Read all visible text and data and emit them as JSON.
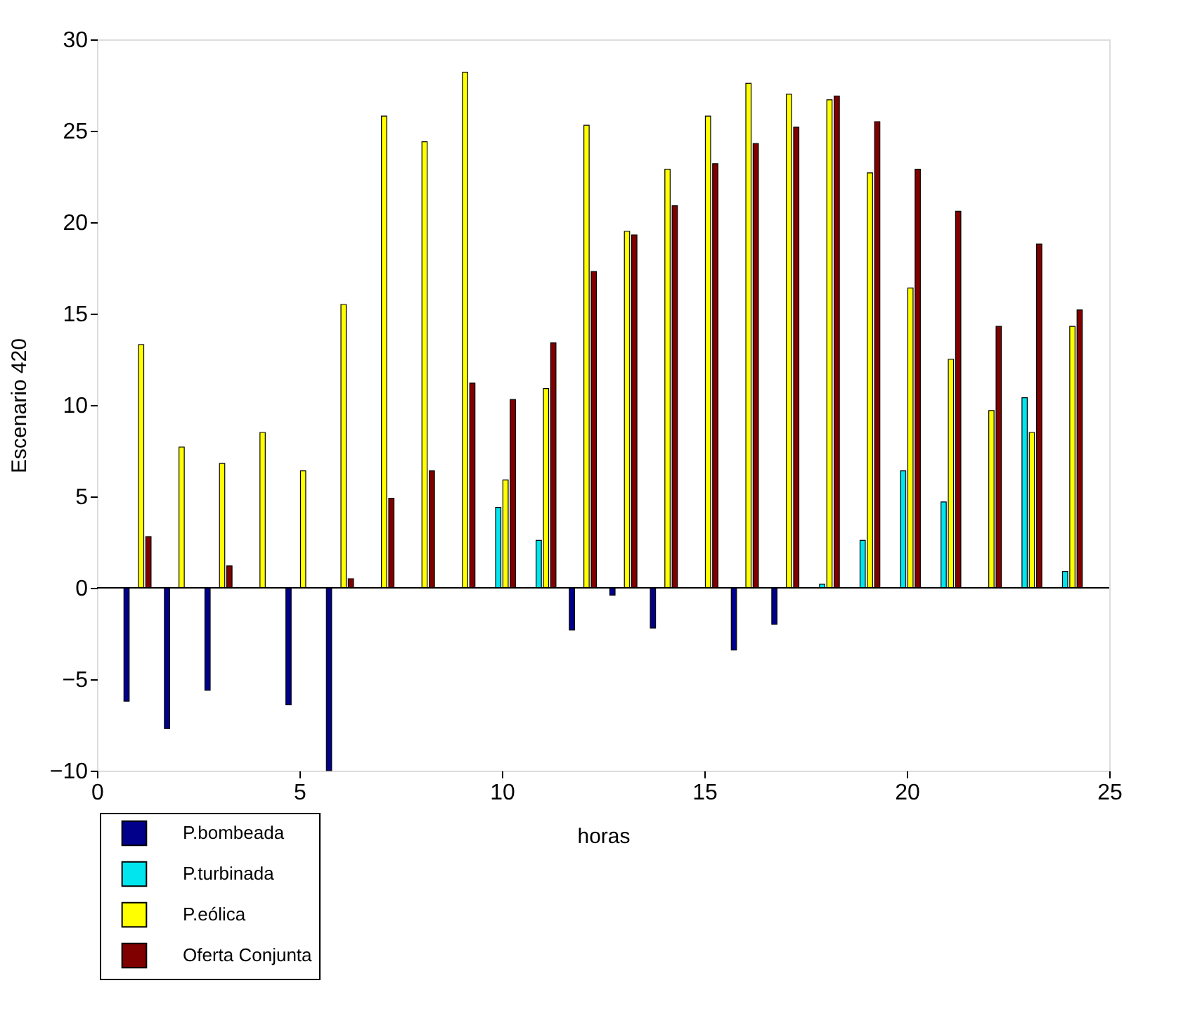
{
  "chart_data": {
    "type": "bar",
    "xlabel": "horas",
    "ylabel": "Escenario 420",
    "x": [
      1,
      2,
      3,
      4,
      5,
      6,
      7,
      8,
      9,
      10,
      11,
      12,
      13,
      14,
      15,
      16,
      17,
      18,
      19,
      20,
      21,
      22,
      23,
      24
    ],
    "series": [
      {
        "name": "P.bombeada",
        "color": "#00008b",
        "values": [
          -6.2,
          -7.7,
          -5.6,
          null,
          -6.4,
          -10,
          null,
          null,
          null,
          null,
          null,
          -2.3,
          -0.4,
          -2.2,
          null,
          -3.4,
          -2.0,
          null,
          null,
          null,
          null,
          null,
          null,
          null
        ]
      },
      {
        "name": "P.turbinada",
        "color": "#00e5ee",
        "values": [
          null,
          null,
          null,
          null,
          null,
          null,
          null,
          null,
          null,
          4.4,
          2.6,
          null,
          null,
          null,
          null,
          null,
          null,
          0.2,
          2.6,
          6.4,
          4.7,
          null,
          10.4,
          0.9
        ]
      },
      {
        "name": "P.eólica",
        "color": "#ffff00",
        "values": [
          13.3,
          7.7,
          6.8,
          8.5,
          6.4,
          15.5,
          25.8,
          24.4,
          28.2,
          5.9,
          10.9,
          25.3,
          19.5,
          22.9,
          25.8,
          27.6,
          27.0,
          26.7,
          22.7,
          16.4,
          12.5,
          9.7,
          8.5,
          14.3
        ]
      },
      {
        "name": "Oferta Conjunta",
        "color": "#800000",
        "values": [
          2.8,
          null,
          1.2,
          null,
          null,
          0.5,
          4.9,
          6.4,
          11.2,
          10.3,
          13.4,
          17.3,
          19.3,
          20.9,
          23.2,
          24.3,
          25.2,
          26.9,
          25.5,
          22.9,
          20.6,
          14.3,
          18.8,
          15.2
        ]
      }
    ],
    "xlim": [
      0,
      25
    ],
    "xticks": [
      0,
      5,
      10,
      15,
      20,
      25
    ],
    "ylim": [
      -10,
      30
    ],
    "yticks": [
      -10,
      -5,
      0,
      5,
      10,
      15,
      20,
      25,
      30
    ],
    "ref_lines": [
      {
        "axis": "y",
        "value": 0,
        "color": "#000000"
      }
    ],
    "grid": false,
    "legend": "bottom left"
  }
}
